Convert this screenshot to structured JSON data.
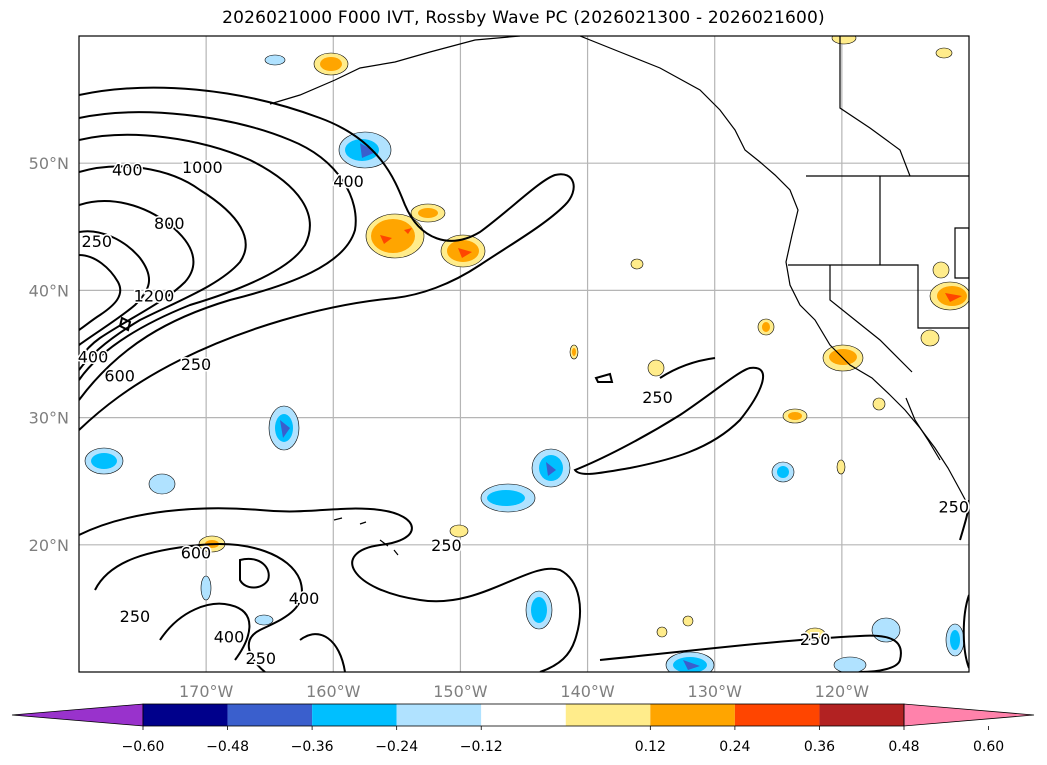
{
  "title": "2026021000 F000 IVT, Rossby Wave PC (2026021300 - 2026021600)",
  "map": {
    "lon_range": [
      -180,
      -110
    ],
    "lat_range": [
      10,
      60
    ],
    "lat_ticks": [
      {
        "value": 50,
        "label": "50°N"
      },
      {
        "value": 40,
        "label": "40°N"
      },
      {
        "value": 30,
        "label": "30°N"
      },
      {
        "value": 20,
        "label": "20°N"
      }
    ],
    "lon_ticks": [
      {
        "value": -170,
        "label": "170°W"
      },
      {
        "value": -160,
        "label": "160°W"
      },
      {
        "value": -150,
        "label": "150°W"
      },
      {
        "value": -140,
        "label": "140°W"
      },
      {
        "value": -130,
        "label": "130°W"
      },
      {
        "value": -120,
        "label": "120°W"
      }
    ],
    "grid": true,
    "contour_labels": [
      {
        "text": "400",
        "lon": -176.2,
        "lat": 49.5
      },
      {
        "text": "1000",
        "lon": -170.3,
        "lat": 49.7
      },
      {
        "text": "400",
        "lon": -158.8,
        "lat": 48.6
      },
      {
        "text": "800",
        "lon": -172.9,
        "lat": 45.3
      },
      {
        "text": "250",
        "lon": -178.6,
        "lat": 43.9
      },
      {
        "text": "1200",
        "lon": -174.1,
        "lat": 39.6
      },
      {
        "text": "400",
        "lon": -178.9,
        "lat": 34.8
      },
      {
        "text": "600",
        "lon": -176.8,
        "lat": 33.3
      },
      {
        "text": "250",
        "lon": -170.8,
        "lat": 34.2
      },
      {
        "text": "250",
        "lon": -134.5,
        "lat": 31.6
      },
      {
        "text": "250",
        "lon": -151.1,
        "lat": 20.0
      },
      {
        "text": "600",
        "lon": -170.8,
        "lat": 19.4
      },
      {
        "text": "250",
        "lon": -175.6,
        "lat": 14.4
      },
      {
        "text": "400",
        "lon": -162.3,
        "lat": 15.8
      },
      {
        "text": "400",
        "lon": -168.2,
        "lat": 12.8
      },
      {
        "text": "250",
        "lon": -165.7,
        "lat": 11.1
      },
      {
        "text": "250",
        "lon": -122.1,
        "lat": 12.6
      },
      {
        "text": "250",
        "lon": -111.2,
        "lat": 23.0
      }
    ]
  },
  "colorbar": {
    "colors": [
      "#9932cc",
      "#00008b",
      "#3a5fcd",
      "#00bfff",
      "#b0e2ff",
      "#ffffff",
      "#ffec8b",
      "#ffa500",
      "#ff4500",
      "#b22222",
      "#ff82ab"
    ],
    "tick_labels": [
      "−0.60",
      "−0.48",
      "−0.36",
      "−0.24",
      "−0.12",
      "0.12",
      "0.24",
      "0.36",
      "0.48",
      "0.60"
    ]
  }
}
